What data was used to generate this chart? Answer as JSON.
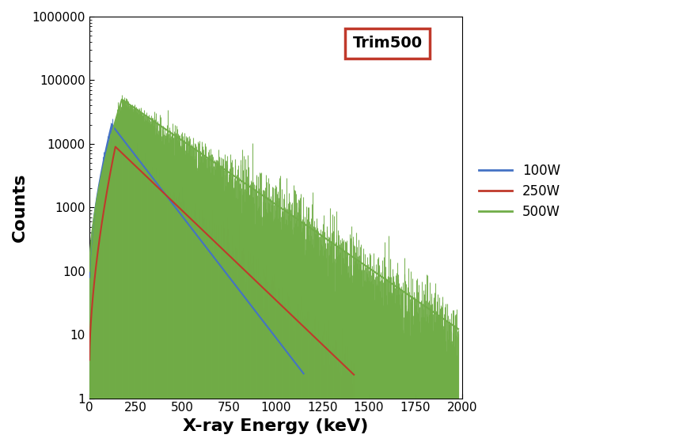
{
  "title": "Trim500",
  "xlabel": "X-ray Energy (keV)",
  "ylabel": "Counts",
  "xlim": [
    0,
    2000
  ],
  "ylim": [
    1,
    1000000
  ],
  "xticks": [
    0,
    250,
    500,
    750,
    1000,
    1250,
    1500,
    1750,
    2000
  ],
  "yticks": [
    1,
    10,
    100,
    1000,
    10000,
    100000,
    1000000
  ],
  "ytick_labels": [
    "1",
    "10",
    "100",
    "1000",
    "10000",
    "100000",
    "1000000"
  ],
  "legend_labels": [
    "100W",
    "250W",
    "500W"
  ],
  "legend_colors": [
    "#4472C4",
    "#C0392B",
    "#70AD47"
  ],
  "series": [
    {
      "label": "100W",
      "color": "#4472C4",
      "peak_x": 120,
      "peak_y": 20000,
      "start_y": 80,
      "cutoff_x": 1150,
      "decay_per_kev": 0.0038,
      "seed": 101
    },
    {
      "label": "250W",
      "color": "#C0392B",
      "peak_x": 140,
      "peak_y": 9000,
      "start_y": 4,
      "cutoff_x": 1420,
      "decay_per_kev": 0.0028,
      "seed": 202
    },
    {
      "label": "500W",
      "color": "#70AD47",
      "peak_x": 175,
      "peak_y": 50000,
      "start_y": 100,
      "cutoff_x": 1980,
      "decay_per_kev": 0.002,
      "seed": 303
    }
  ],
  "background_color": "#FFFFFF",
  "box_color": "#C0392B",
  "title_fontsize": 14,
  "axis_label_fontsize": 16,
  "tick_fontsize": 11,
  "legend_fontsize": 12
}
